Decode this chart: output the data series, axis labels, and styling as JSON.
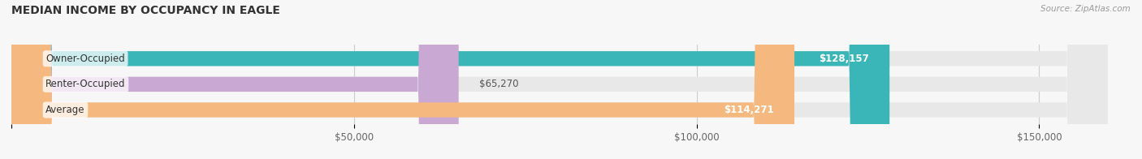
{
  "title": "MEDIAN INCOME BY OCCUPANCY IN EAGLE",
  "categories": [
    "Owner-Occupied",
    "Renter-Occupied",
    "Average"
  ],
  "values": [
    128157,
    65270,
    114271
  ],
  "bar_colors": [
    "#3ab5b8",
    "#c9a8d4",
    "#f5b97f"
  ],
  "bar_bg_color": "#e8e8e8",
  "value_labels": [
    "$128,157",
    "$65,270",
    "$114,271"
  ],
  "value_label_inside": [
    true,
    false,
    true
  ],
  "xlim": [
    0,
    160000
  ],
  "xticks": [
    0,
    50000,
    100000,
    150000
  ],
  "xticklabels": [
    "",
    "$50,000",
    "$100,000",
    "$150,000"
  ],
  "source_text": "Source: ZipAtlas.com",
  "title_fontsize": 10,
  "bar_height": 0.58,
  "figsize": [
    14.06,
    1.96
  ],
  "dpi": 100
}
